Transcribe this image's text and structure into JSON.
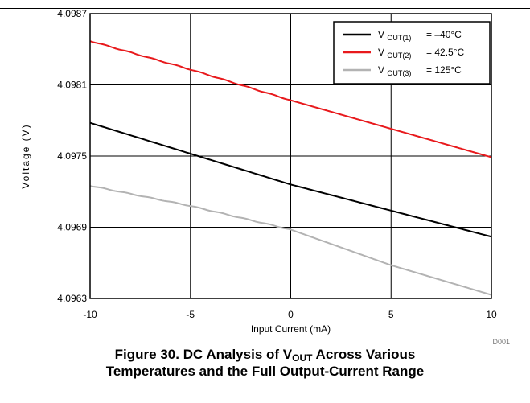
{
  "chart_data": {
    "type": "line",
    "xlabel": "Input Current (mA)",
    "ylabel": "Voltage (V)",
    "xlim": [
      -10,
      10
    ],
    "ylim": [
      4.0963,
      4.0987
    ],
    "xticks": [
      "-10",
      "-5",
      "0",
      "5",
      "10"
    ],
    "yticks": [
      "4.0963",
      "4.0969",
      "4.0975",
      "4.0981",
      "4.0987"
    ],
    "grid": true,
    "legend_position": "top-right",
    "series": [
      {
        "name": "V OUT(1) = –40°C",
        "label_main": "V",
        "label_sub": "OUT(1)",
        "label_value": "= –40°C",
        "color": "#000000",
        "x": [
          -10,
          -5,
          0,
          5,
          10
        ],
        "y": [
          4.09778,
          4.09752,
          4.09726,
          4.09704,
          4.09682
        ]
      },
      {
        "name": "V OUT(2) = 42.5°C",
        "label_main": "V",
        "label_sub": "OUT(2)",
        "label_value": "= 42.5°C",
        "color": "#e8191c",
        "x": [
          -10,
          -5,
          0,
          5,
          10
        ],
        "y": [
          4.09847,
          4.09823,
          4.09797,
          4.09773,
          4.09749
        ]
      },
      {
        "name": "V OUT(3) = 125°C",
        "label_main": "V",
        "label_sub": "OUT(3)",
        "label_value": "= 125°C",
        "color": "#b3b3b3",
        "x": [
          -10,
          -5,
          0,
          5,
          10
        ],
        "y": [
          4.09725,
          4.09708,
          4.09688,
          4.09658,
          4.09633
        ]
      }
    ]
  },
  "figure_code": "D001",
  "caption": {
    "line1_prefix": "Figure 30. DC Analysis of V",
    "line1_sub": "OUT",
    "line1_suffix": " Across Various",
    "line2": "Temperatures and the Full Output-Current Range"
  }
}
